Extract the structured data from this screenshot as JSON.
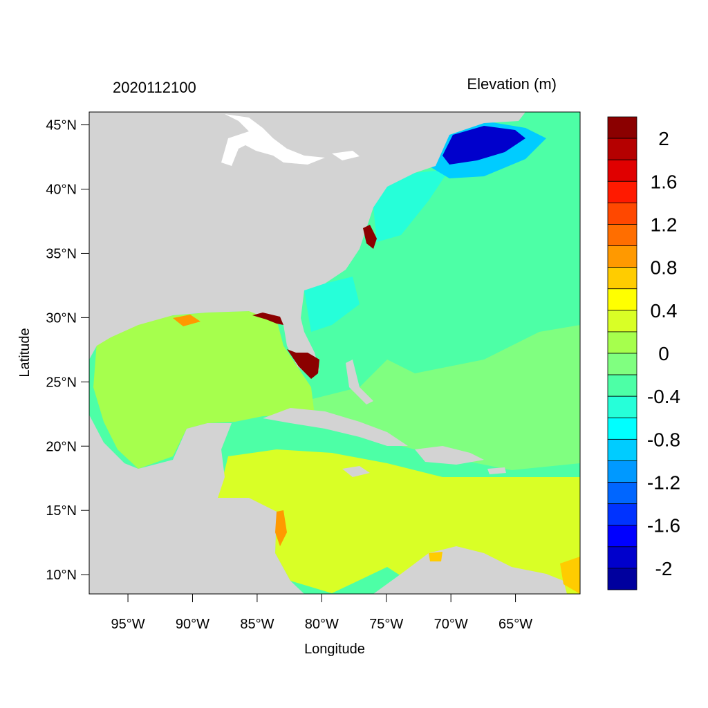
{
  "figure": {
    "title_left": "2020112100",
    "title_right": "Elevation (m)",
    "xlabel": "Longitude",
    "ylabel": "Latitude"
  },
  "axes": {
    "lon_range": [
      -98,
      -60
    ],
    "lat_range": [
      8.5,
      46
    ],
    "x_ticks": [
      {
        "value": -95,
        "label": "95°W"
      },
      {
        "value": -90,
        "label": "90°W"
      },
      {
        "value": -85,
        "label": "85°W"
      },
      {
        "value": -80,
        "label": "80°W"
      },
      {
        "value": -75,
        "label": "75°W"
      },
      {
        "value": -70,
        "label": "70°W"
      },
      {
        "value": -65,
        "label": "65°W"
      }
    ],
    "y_ticks": [
      {
        "value": 45,
        "label": "45°N"
      },
      {
        "value": 40,
        "label": "40°N"
      },
      {
        "value": 35,
        "label": "35°N"
      },
      {
        "value": 30,
        "label": "30°N"
      },
      {
        "value": 25,
        "label": "25°N"
      },
      {
        "value": 20,
        "label": "20°N"
      },
      {
        "value": 15,
        "label": "15°N"
      },
      {
        "value": 10,
        "label": "10°N"
      }
    ]
  },
  "colorbar": {
    "bins_top_to_bottom": [
      "#8b0000",
      "#b50000",
      "#e00000",
      "#ff1a00",
      "#ff4800",
      "#ff6e00",
      "#ff9900",
      "#ffcc00",
      "#ffff00",
      "#d9ff26",
      "#a6ff4d",
      "#80ff80",
      "#4dffa6",
      "#26ffd9",
      "#00ffff",
      "#00ccff",
      "#0099ff",
      "#0066ff",
      "#0033ff",
      "#0000ff",
      "#0000cc",
      "#00009e"
    ],
    "labels": [
      {
        "bin_index": 1,
        "text": "2"
      },
      {
        "bin_index": 3,
        "text": "1.6"
      },
      {
        "bin_index": 5,
        "text": "1.2"
      },
      {
        "bin_index": 7,
        "text": "0.8"
      },
      {
        "bin_index": 9,
        "text": "0.4"
      },
      {
        "bin_index": 11,
        "text": "0"
      },
      {
        "bin_index": 13,
        "text": "-0.4"
      },
      {
        "bin_index": 15,
        "text": "-0.8"
      },
      {
        "bin_index": 17,
        "text": "-1.2"
      },
      {
        "bin_index": 19,
        "text": "-1.6"
      },
      {
        "bin_index": 21,
        "text": "-2"
      }
    ]
  },
  "colors": {
    "land": "#d3d3d3",
    "lake": "#ffffff",
    "atlantic": "#4dffa6",
    "atlantic_low": "#80ff80",
    "gulf": "#a6ff4d",
    "caribbean": "#d9ff26",
    "coastal_negative": "#26ffd9",
    "gulf_of_maine": "#0000cc",
    "surge_high": "#8b0000"
  }
}
